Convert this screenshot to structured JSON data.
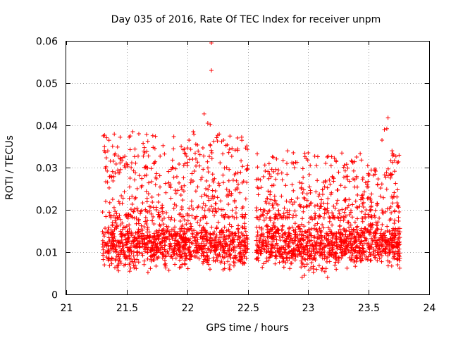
{
  "chart_data": {
    "type": "scatter",
    "title": "Day 035 of 2016, Rate Of TEC Index for receiver unpm",
    "xlabel": "GPS time / hours",
    "ylabel": "ROTI / TECUs",
    "xlim": [
      21,
      24
    ],
    "ylim": [
      0,
      0.06
    ],
    "xticks": [
      21,
      21.5,
      22,
      22.5,
      23,
      23.5,
      24
    ],
    "xtick_labels": [
      "21",
      "21.5",
      "22",
      "22.5",
      "23",
      "23.5",
      "24"
    ],
    "yticks": [
      0,
      0.01,
      0.02,
      0.03,
      0.04,
      0.05,
      0.06
    ],
    "ytick_labels": [
      "0",
      "0.01",
      "0.02",
      "0.03",
      "0.04",
      "0.05",
      "0.06"
    ],
    "grid": true,
    "marker": "plus",
    "color": "#ff0000",
    "series": [
      {
        "name": "ROTI",
        "segments": [
          {
            "x_range": [
              21.3,
              22.5
            ],
            "n_points": 1400,
            "baseline": 0.012,
            "spread": 0.0045,
            "upper_band": [
              0.018,
              0.038
            ],
            "upper_fraction": 0.28
          },
          {
            "x_range": [
              22.57,
              23.76
            ],
            "n_points": 1400,
            "baseline": 0.012,
            "spread": 0.0045,
            "upper_band": [
              0.018,
              0.034
            ],
            "upper_fraction": 0.26
          }
        ],
        "notable_points": [
          {
            "x": 22.2,
            "y": 0.0595
          },
          {
            "x": 22.2,
            "y": 0.053
          },
          {
            "x": 22.14,
            "y": 0.0427
          },
          {
            "x": 22.17,
            "y": 0.0405
          },
          {
            "x": 22.19,
            "y": 0.0402
          },
          {
            "x": 22.05,
            "y": 0.0385
          },
          {
            "x": 23.66,
            "y": 0.0418
          },
          {
            "x": 23.63,
            "y": 0.039
          },
          {
            "x": 23.65,
            "y": 0.0392
          },
          {
            "x": 21.55,
            "y": 0.0385
          },
          {
            "x": 21.6,
            "y": 0.038
          },
          {
            "x": 22.45,
            "y": 0.0372
          },
          {
            "x": 22.3,
            "y": 0.0365
          },
          {
            "x": 21.52,
            "y": 0.0372
          },
          {
            "x": 23.61,
            "y": 0.0365
          },
          {
            "x": 23.0,
            "y": 0.0335
          },
          {
            "x": 23.4,
            "y": 0.0325
          },
          {
            "x": 23.7,
            "y": 0.0328
          },
          {
            "x": 21.4,
            "y": 0.033
          },
          {
            "x": 21.8,
            "y": 0.0352
          },
          {
            "x": 22.95,
            "y": 0.004
          },
          {
            "x": 23.16,
            "y": 0.004
          },
          {
            "x": 22.97,
            "y": 0.0045
          }
        ]
      }
    ]
  }
}
